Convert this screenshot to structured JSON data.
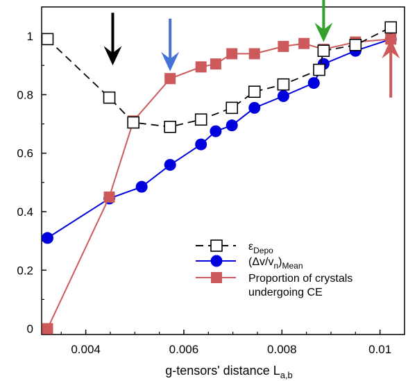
{
  "chart_data": {
    "type": "line",
    "xlabel": "g-tensors' distance L",
    "xlabel_sub": "a,b",
    "ylabel": "",
    "xlim": [
      0.0031,
      0.0105
    ],
    "ylim": [
      -0.02,
      1.1
    ],
    "x_ticks": [
      0.004,
      0.006,
      0.008,
      0.01
    ],
    "x_tick_labels": [
      "0.004",
      "0.006",
      "0.008",
      "0.01"
    ],
    "y_ticks": [
      0,
      0.2,
      0.4,
      0.6,
      0.8,
      1
    ],
    "y_tick_labels": [
      "0",
      "0.2",
      "0.4",
      "0.6",
      "0.8",
      "1"
    ],
    "legend_position": "lower-right",
    "series": [
      {
        "name": "ε",
        "name_sub": "Depo",
        "style": "dashed",
        "color": "#000000",
        "marker": "open-square",
        "x": [
          0.00322,
          0.00448,
          0.00497,
          0.00572,
          0.00635,
          0.00698,
          0.00744,
          0.00803,
          0.00876,
          0.00885,
          0.0095,
          0.01022
        ],
        "y": [
          0.99,
          0.79,
          0.705,
          0.69,
          0.715,
          0.755,
          0.81,
          0.835,
          0.885,
          0.95,
          0.97,
          1.03
        ]
      },
      {
        "name": "(Δv/v",
        "name_sub_n": "n",
        "name_close": ")",
        "name_sub": "Mean",
        "style": "solid",
        "color": "#0000dd",
        "marker": "filled-circle",
        "x": [
          0.00322,
          0.00448,
          0.00514,
          0.00572,
          0.00635,
          0.00665,
          0.00698,
          0.00744,
          0.00803,
          0.00865,
          0.00885,
          0.0095,
          0.01022
        ],
        "y": [
          0.31,
          0.445,
          0.485,
          0.56,
          0.63,
          0.675,
          0.695,
          0.755,
          0.795,
          0.84,
          0.905,
          0.95,
          0.99
        ]
      },
      {
        "name": "Proportion of crystals undergoing CE",
        "name_line1": "Proportion of crystals",
        "name_line2": "undergoing CE",
        "style": "solid",
        "color": "#cd5a5a",
        "marker": "filled-square",
        "x": [
          0.00322,
          0.00448,
          0.00497,
          0.00572,
          0.00635,
          0.00665,
          0.00698,
          0.00744,
          0.00803,
          0.00845,
          0.00885,
          0.0095,
          0.01022
        ],
        "y": [
          0.0,
          0.45,
          0.71,
          0.855,
          0.895,
          0.905,
          0.94,
          0.94,
          0.965,
          0.975,
          0.955,
          0.98,
          0.99
        ]
      }
    ],
    "annotations": [
      {
        "type": "arrow-down",
        "x": 0.00455,
        "y_from": 1.08,
        "y_to": 0.9,
        "color": "#000000"
      },
      {
        "type": "arrow-down",
        "x": 0.00572,
        "y_from": 1.06,
        "y_to": 0.88,
        "color": "#4472d6"
      },
      {
        "type": "arrow-down",
        "x": 0.00885,
        "y_from": 1.13,
        "y_to": 0.98,
        "color": "#33a02c"
      },
      {
        "type": "arrow-up",
        "x": 0.01022,
        "y_from": 0.79,
        "y_to": 0.99,
        "color": "#cd5a5a"
      }
    ]
  }
}
